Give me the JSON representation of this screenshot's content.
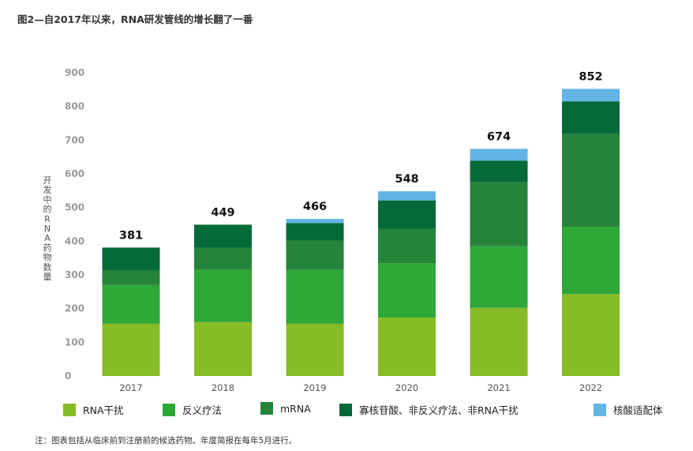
{
  "title": "图2—自2017年以来，RNA研发管线的增长翻了一番",
  "note": "注：图表包括从临床前到注册前的候选药物。年度简报在每年5月进行。",
  "colors": {
    "rna_interference": "#86bc25",
    "antisense": "#2ea836",
    "mrna": "#25843a",
    "other": "#046a38",
    "aptamer": "#62b5e5",
    "axis_text": "#999999",
    "total_label": "#111111"
  },
  "chart_data": {
    "type": "bar",
    "stacked": true,
    "title": "图2—自2017年以来，RNA研发管线的增长翻了一番",
    "ylabel": "开发中的RNA药物数量",
    "xlabel": "",
    "ylim": [
      0,
      900
    ],
    "yticks": [
      0,
      100,
      200,
      300,
      400,
      500,
      600,
      700,
      800,
      900
    ],
    "grid": false,
    "legend_position": "bottom",
    "categories": [
      "2017",
      "2018",
      "2019",
      "2020",
      "2021",
      "2022"
    ],
    "totals": [
      381,
      449,
      466,
      548,
      674,
      852
    ],
    "series": [
      {
        "name": "RNA干扰",
        "color_key": "rna_interference",
        "values": [
          155,
          160,
          155,
          173,
          202,
          243
        ]
      },
      {
        "name": "反义疗法",
        "color_key": "antisense",
        "values": [
          115,
          155,
          160,
          162,
          183,
          200
        ]
      },
      {
        "name": "mRNA",
        "color_key": "mrna",
        "values": [
          43,
          65,
          87,
          102,
          190,
          275
        ]
      },
      {
        "name": "寡核苷酸、非反义疗法、非RNA干扰",
        "color_key": "other",
        "values": [
          68,
          69,
          52,
          84,
          64,
          97
        ]
      },
      {
        "name": "核酸适配体",
        "color_key": "aptamer",
        "values": [
          0,
          0,
          12,
          27,
          35,
          37
        ]
      }
    ]
  }
}
